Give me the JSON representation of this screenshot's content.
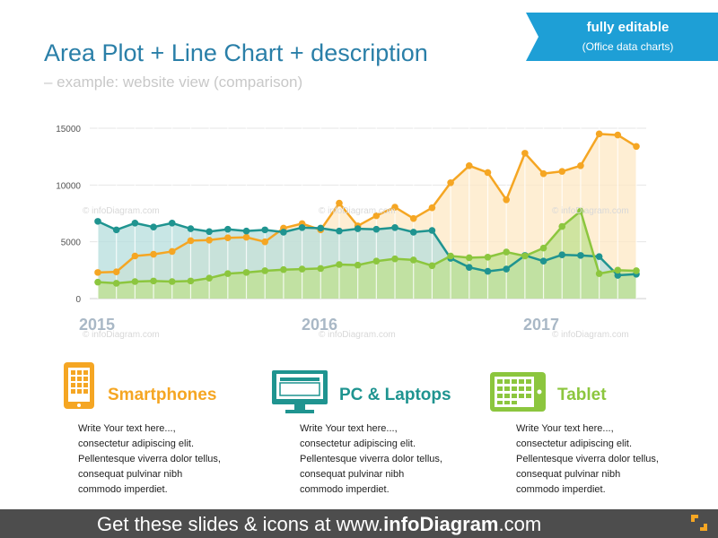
{
  "header": {
    "title": "Area Plot + Line Chart + description",
    "subtitle": "– example: website view (comparison)"
  },
  "badge": {
    "line1": "fully editable",
    "line2": "(Office data charts)",
    "color": "#1e9fd6"
  },
  "watermark": "© infoDiagram.com",
  "chart_data": {
    "type": "area",
    "yticks": [
      0,
      5000,
      10000,
      15000
    ],
    "ylim": [
      0,
      15000
    ],
    "year_labels": [
      "2015",
      "2016",
      "2017"
    ],
    "grid": true,
    "series": [
      {
        "key": "smartphones",
        "color": "#f5a623",
        "fill": "#fde8c4",
        "values": [
          2300,
          2350,
          3750,
          3900,
          4150,
          5100,
          5150,
          5350,
          5400,
          5000,
          6200,
          6600,
          6050,
          8400,
          6400,
          7300,
          8050,
          7050,
          8000,
          10200,
          11700,
          11100,
          8700,
          12800,
          11000,
          11200,
          11700,
          14500,
          14400,
          13400
        ]
      },
      {
        "key": "pc",
        "color": "#1f9490",
        "fill": "#b5dedc",
        "values": [
          6800,
          6050,
          6650,
          6300,
          6650,
          6150,
          5900,
          6100,
          5950,
          6050,
          5850,
          6250,
          6200,
          5950,
          6150,
          6100,
          6250,
          5850,
          6000,
          3550,
          2750,
          2400,
          2600,
          3800,
          3300,
          3850,
          3800,
          3700,
          2050,
          2150
        ]
      },
      {
        "key": "tablet",
        "color": "#8cc63e",
        "fill": "#bfe08f",
        "values": [
          1450,
          1350,
          1500,
          1550,
          1500,
          1550,
          1800,
          2200,
          2300,
          2450,
          2550,
          2600,
          2650,
          3000,
          2950,
          3300,
          3500,
          3400,
          2900,
          3750,
          3600,
          3650,
          4100,
          3750,
          4450,
          6350,
          7700,
          2200,
          2500,
          2450
        ]
      }
    ]
  },
  "legend": [
    {
      "key": "smartphones",
      "icon": "smartphone-icon",
      "label": "Smartphones",
      "color": "#f5a623",
      "text": [
        "Write Your text here...,",
        "consectetur adipiscing elit.",
        "Pellentesque viverra dolor tellus,",
        "consequat pulvinar nibh",
        "commodo imperdiet."
      ]
    },
    {
      "key": "pc",
      "icon": "desktop-computer-icon",
      "label": "PC & Laptops",
      "color": "#1f9490",
      "text": [
        "Write Your text here...,",
        "consectetur adipiscing elit.",
        "Pellentesque viverra dolor tellus,",
        "consequat pulvinar nibh",
        "commodo imperdiet."
      ]
    },
    {
      "key": "tablet",
      "icon": "tablet-icon",
      "label": "Tablet",
      "color": "#8cc63e",
      "text": [
        "Write Your text here...,",
        "consectetur adipiscing elit.",
        "Pellentesque viverra dolor tellus,",
        "consequat pulvinar nibh",
        "commodo imperdiet."
      ]
    }
  ],
  "footer": {
    "prefix": "Get these slides & icons at www.",
    "brand": "infoDiagram",
    "suffix": ".com"
  }
}
